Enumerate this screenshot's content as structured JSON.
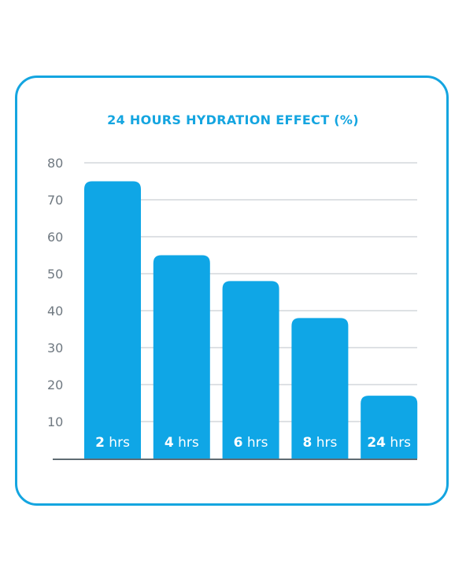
{
  "chart_data": {
    "type": "bar",
    "title": "24 HOURS HYDRATION EFFECT (%)",
    "categories": [
      "2 hrs",
      "4 hrs",
      "6 hrs",
      "8 hrs",
      "24 hrs"
    ],
    "category_parts": [
      {
        "num": "2",
        "unit": "hrs"
      },
      {
        "num": "4",
        "unit": "hrs"
      },
      {
        "num": "6",
        "unit": "hrs"
      },
      {
        "num": "8",
        "unit": "hrs"
      },
      {
        "num": "24",
        "unit": "hrs"
      }
    ],
    "values": [
      75,
      55,
      48,
      38,
      17
    ],
    "yticks": [
      10,
      20,
      30,
      40,
      50,
      60,
      70,
      80
    ],
    "ylim": [
      0,
      80
    ],
    "grid": true,
    "xlabel": "",
    "ylabel": "",
    "colors": {
      "bar": "#0fa6e6",
      "frame": "#14a5e0",
      "title": "#14a5e0",
      "grid": "#c9cfd4",
      "axis": "#5f6b73",
      "tick_text": "#6f7880",
      "bar_label": "#ffffff"
    }
  }
}
